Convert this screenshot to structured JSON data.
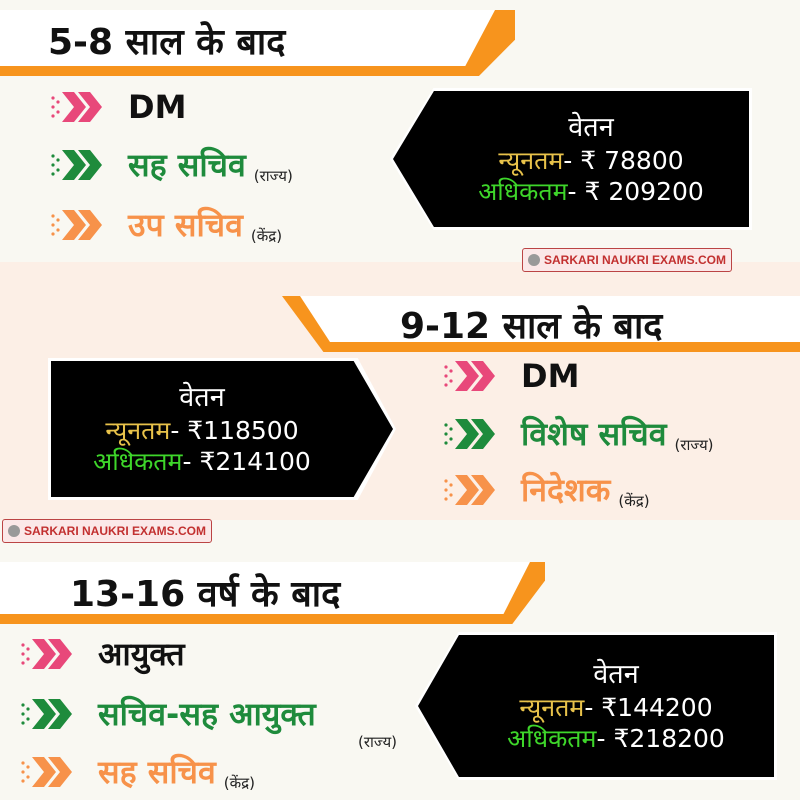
{
  "colors": {
    "orange_bar": "#f7941d",
    "pink": "#e8487a",
    "green": "#1e8b3c",
    "orange": "#f7924a",
    "min_label": "#e8c24a",
    "max_label": "#3ed62a"
  },
  "watermark": "SARKARI NAUKRI EXAMS.COM",
  "sections": [
    {
      "title": "5-8 साल के बाद",
      "items": [
        {
          "label": "DM",
          "note": ""
        },
        {
          "label": "सह सचिव",
          "note": "(राज्य)"
        },
        {
          "label": "उप सचिव",
          "note": "(केंद्र)"
        }
      ],
      "salary": {
        "head": "वेतन",
        "min_label": "न्यूनतम",
        "min_value": "- ₹ 78800",
        "max_label": "अधिकतम",
        "max_value": "- ₹ 209200"
      }
    },
    {
      "title": "9-12 साल के बाद",
      "items": [
        {
          "label": "DM",
          "note": ""
        },
        {
          "label": "विशेष सचिव",
          "note": "(राज्य)"
        },
        {
          "label": "निदेशक",
          "note": "(केंद्र)"
        }
      ],
      "salary": {
        "head": "वेतन",
        "min_label": "न्यूनतम",
        "min_value": "- ₹118500",
        "max_label": "अधिकतम",
        "max_value": "- ₹214100"
      }
    },
    {
      "title": "13-16 वर्ष के बाद",
      "items": [
        {
          "label": "आयुक्त",
          "note": ""
        },
        {
          "label": "सचिव-सह आयुक्त",
          "note": "(राज्य)"
        },
        {
          "label": "सह सचिव",
          "note": "(केंद्र)"
        }
      ],
      "salary": {
        "head": "वेतन",
        "min_label": "न्यूनतम",
        "min_value": "- ₹144200",
        "max_label": "अधिकतम",
        "max_value": "- ₹218200"
      }
    }
  ]
}
